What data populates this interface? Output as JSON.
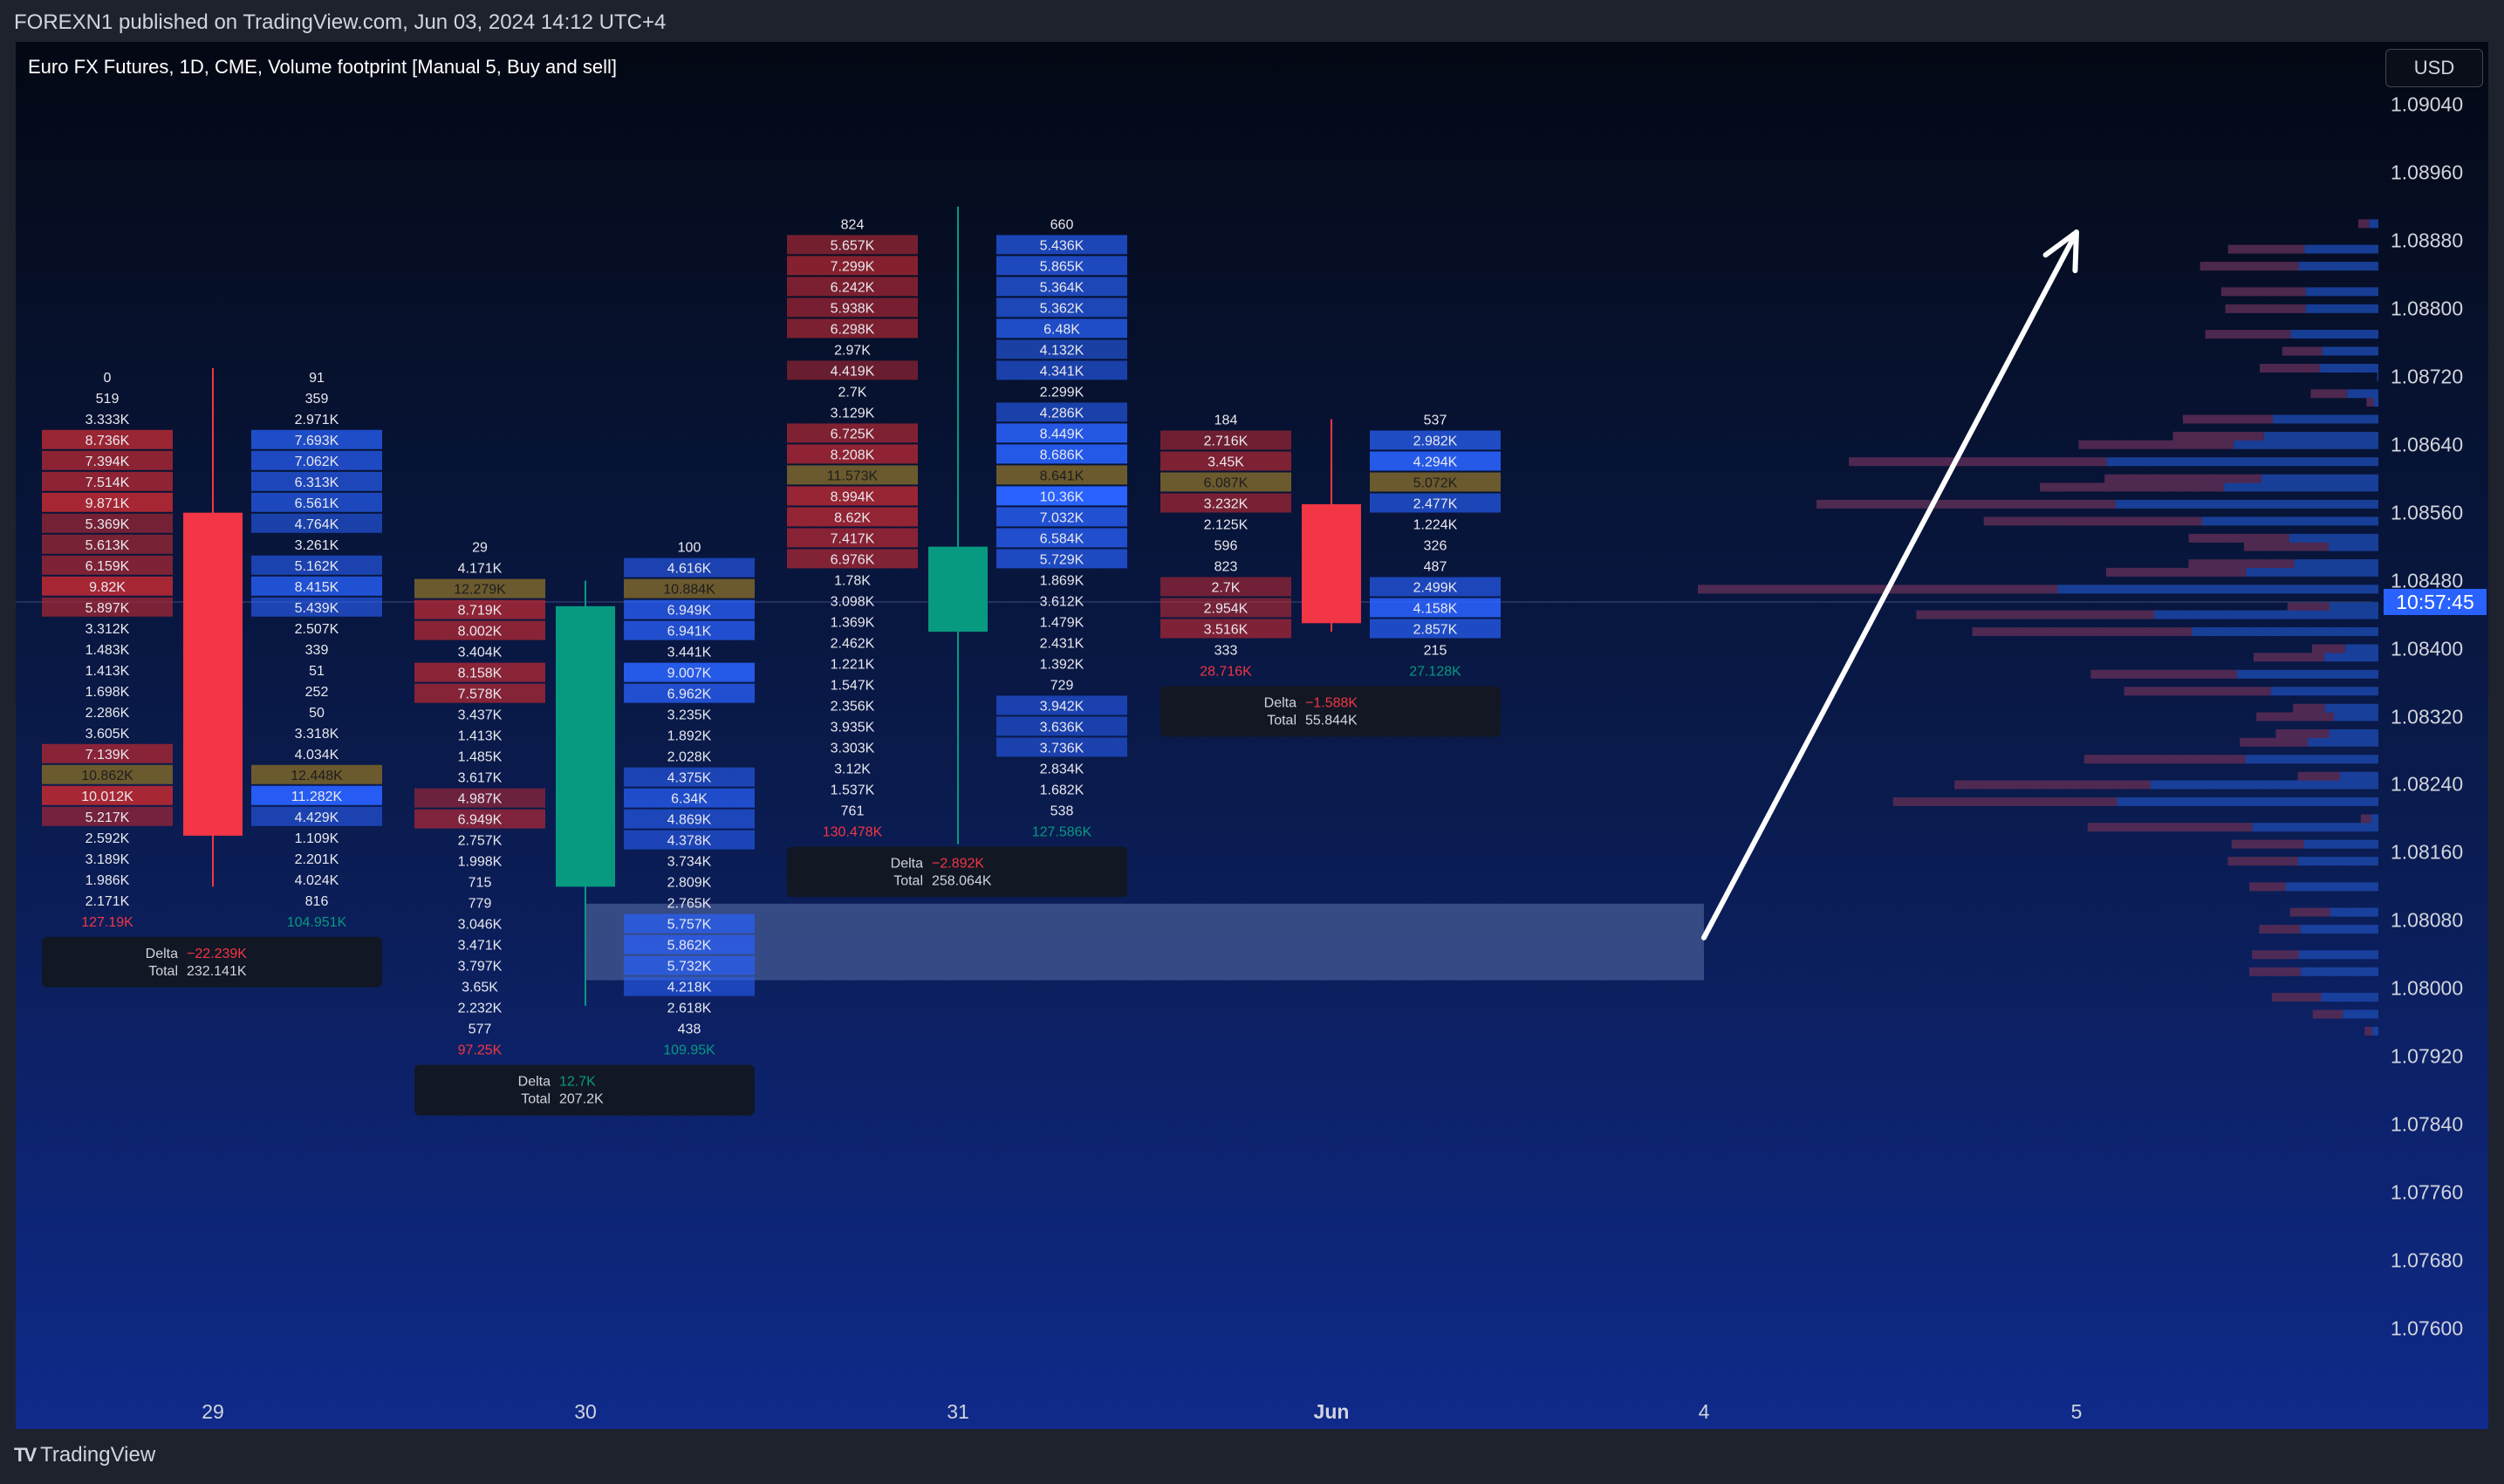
{
  "publisher_line": "FOREXN1 published on TradingView.com, Jun 03, 2024 14:12 UTC+4",
  "branding": {
    "logo_text": "TradingView"
  },
  "colors": {
    "bull": "#089981",
    "bear": "#f23645",
    "buy_cell": "#2962ff",
    "sell_cell": "#b22833",
    "poc_cell": "#6b5a2e",
    "delta_negative": "#f23645",
    "delta_positive": "#089981",
    "arrow": "#ffffff"
  },
  "chart_data": {
    "type": "candlestick",
    "title": "Euro FX Futures, 1D, CME, Volume footprint [Manual 5, Buy and sell]",
    "currency": "USD",
    "current_price_label": "10:57:45",
    "current_price": 1.08455,
    "y_axis": {
      "ticks": [
        "1.09040",
        "1.08960",
        "1.08880",
        "1.08800",
        "1.08720",
        "1.08640",
        "1.08560",
        "1.08480",
        "1.08400",
        "1.08320",
        "1.08240",
        "1.08160",
        "1.08080",
        "1.08000",
        "1.07920",
        "1.07840",
        "1.07760",
        "1.07680",
        "1.07600"
      ],
      "range": [
        1.0756,
        1.0908
      ]
    },
    "x_axis": {
      "ticks": [
        "29",
        "30",
        "31",
        "Jun",
        "4",
        "5"
      ]
    },
    "candles": [
      {
        "date": "29",
        "open": 1.0856,
        "high": 1.0873,
        "low": 1.0812,
        "close": 1.0818,
        "footprint_top": 1.0872,
        "row_step": 0.00025,
        "sell": [
          "0",
          "519",
          "3.333K",
          "8.736K",
          "7.394K",
          "7.514K",
          "9.871K",
          "5.369K",
          "5.613K",
          "6.159K",
          "9.82K",
          "5.897K",
          "3.312K",
          "1.483K",
          "1.413K",
          "1.698K",
          "2.286K",
          "3.605K",
          "7.139K",
          "10.862K",
          "10.012K",
          "5.217K",
          "2.592K",
          "3.189K",
          "1.986K",
          "2.171K"
        ],
        "buy": [
          "91",
          "359",
          "2.971K",
          "7.693K",
          "7.062K",
          "6.313K",
          "6.561K",
          "4.764K",
          "3.261K",
          "5.162K",
          "8.415K",
          "5.439K",
          "2.507K",
          "339",
          "51",
          "252",
          "50",
          "3.318K",
          "4.034K",
          "12.448K",
          "11.282K",
          "4.429K",
          "1.109K",
          "2.201K",
          "4.024K",
          "816"
        ],
        "poc_index": 19,
        "sell_total": "127.19K",
        "buy_total": "104.951K",
        "delta_label": "Delta",
        "delta": "−22.239K",
        "total_label": "Total",
        "total": "232.141K"
      },
      {
        "date": "30",
        "open": 1.0812,
        "high": 1.0848,
        "low": 1.0798,
        "close": 1.0845,
        "footprint_top": 1.0852,
        "row_step": 0.00025,
        "sell": [
          "29",
          "4.171K",
          "12.279K",
          "8.719K",
          "8.002K",
          "3.404K",
          "8.158K",
          "7.578K",
          "3.437K",
          "1.413K",
          "1.485K",
          "3.617K",
          "4.987K",
          "6.949K",
          "2.757K",
          "1.998K",
          "715",
          "779",
          "3.046K",
          "3.471K",
          "3.797K",
          "3.65K",
          "2.232K",
          "577"
        ],
        "buy": [
          "100",
          "4.616K",
          "10.884K",
          "6.949K",
          "6.941K",
          "3.441K",
          "9.007K",
          "6.962K",
          "3.235K",
          "1.892K",
          "2.028K",
          "4.375K",
          "6.34K",
          "4.869K",
          "4.378K",
          "3.734K",
          "2.809K",
          "2.765K",
          "5.757K",
          "5.862K",
          "5.732K",
          "4.218K",
          "2.618K",
          "438"
        ],
        "poc_index": 2,
        "sell_total": "97.25K",
        "buy_total": "109.95K",
        "delta_label": "Delta",
        "delta": "12.7K",
        "total_label": "Total",
        "total": "207.2K"
      },
      {
        "date": "31",
        "open": 1.0842,
        "high": 1.0892,
        "low": 1.0817,
        "close": 1.0852,
        "footprint_top": 1.089,
        "row_step": 0.00025,
        "sell": [
          "824",
          "5.657K",
          "7.299K",
          "6.242K",
          "5.938K",
          "6.298K",
          "2.97K",
          "4.419K",
          "2.7K",
          "3.129K",
          "6.725K",
          "8.208K",
          "11.573K",
          "8.994K",
          "8.62K",
          "7.417K",
          "6.976K",
          "1.78K",
          "3.098K",
          "1.369K",
          "2.462K",
          "1.221K",
          "1.547K",
          "2.356K",
          "3.935K",
          "3.303K",
          "3.12K",
          "1.537K",
          "761"
        ],
        "buy": [
          "660",
          "5.436K",
          "5.865K",
          "5.364K",
          "5.362K",
          "6.48K",
          "4.132K",
          "4.341K",
          "2.299K",
          "4.286K",
          "8.449K",
          "8.686K",
          "8.641K",
          "10.36K",
          "7.032K",
          "6.584K",
          "5.729K",
          "1.869K",
          "3.612K",
          "1.479K",
          "2.431K",
          "1.392K",
          "729",
          "3.942K",
          "3.636K",
          "3.736K",
          "2.834K",
          "1.682K",
          "538"
        ],
        "poc_index": 12,
        "sell_total": "130.478K",
        "buy_total": "127.586K",
        "delta_label": "Delta",
        "delta": "−2.892K",
        "total_label": "Total",
        "total": "258.064K"
      },
      {
        "date": "Jun",
        "open": 1.0857,
        "high": 1.0867,
        "low": 1.0842,
        "close": 1.0843,
        "footprint_top": 1.0867,
        "row_step": 0.00025,
        "sell": [
          "184",
          "2.716K",
          "3.45K",
          "6.087K",
          "3.232K",
          "2.125K",
          "596",
          "823",
          "2.7K",
          "2.954K",
          "3.516K",
          "333"
        ],
        "buy": [
          "537",
          "2.982K",
          "4.294K",
          "5.072K",
          "2.477K",
          "1.224K",
          "326",
          "487",
          "2.499K",
          "4.158K",
          "2.857K",
          "215"
        ],
        "poc_index": 3,
        "sell_total": "28.716K",
        "buy_total": "27.128K",
        "delta_label": "Delta",
        "delta": "−1.588K",
        "total_label": "Total",
        "total": "55.844K"
      }
    ],
    "annotations": {
      "zone": {
        "from_price": 1.081,
        "to_price": 1.0801,
        "from_date": "30",
        "to_date": "4"
      },
      "arrow": {
        "from_date": "4",
        "from_price": 1.0806,
        "to_date": "5",
        "to_price": 1.0889
      }
    }
  }
}
